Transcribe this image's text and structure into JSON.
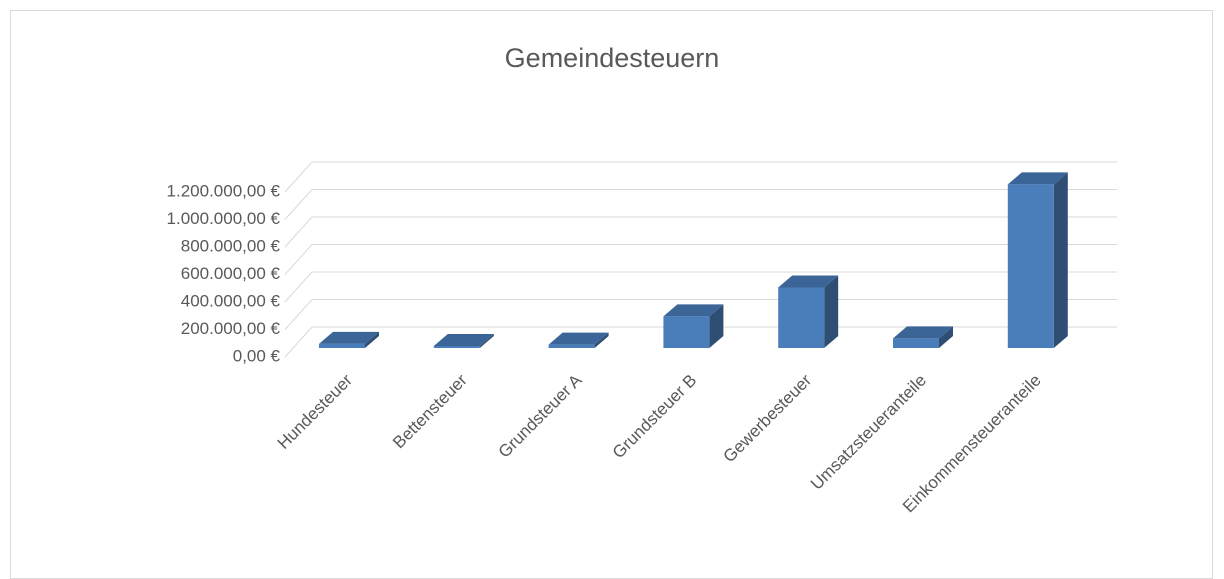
{
  "chart_data": {
    "type": "bar3d",
    "title": "Gemeindesteuern",
    "categories": [
      "Hundesteuer",
      "Bettensteuer",
      "Grundsteuer A",
      "Grundsteuer B",
      "Gewerbesteuer",
      "Umsatzsteueranteile",
      "Einkommensteueranteile"
    ],
    "values": [
      30000,
      15000,
      25000,
      230000,
      440000,
      70000,
      1190000
    ],
    "color": "#4a7ebb",
    "ylim": [
      0,
      1200000
    ],
    "yticks": [
      {
        "value": 0,
        "label": "0,00 €"
      },
      {
        "value": 200000,
        "label": "200.000,00 €"
      },
      {
        "value": 400000,
        "label": "400.000,00 €"
      },
      {
        "value": 600000,
        "label": "600.000,00 €"
      },
      {
        "value": 800000,
        "label": "800.000,00 €"
      },
      {
        "value": 1000000,
        "label": "1.000.000,00 €"
      },
      {
        "value": 1200000,
        "label": "1.200.000,00 €"
      }
    ],
    "grid": true
  }
}
